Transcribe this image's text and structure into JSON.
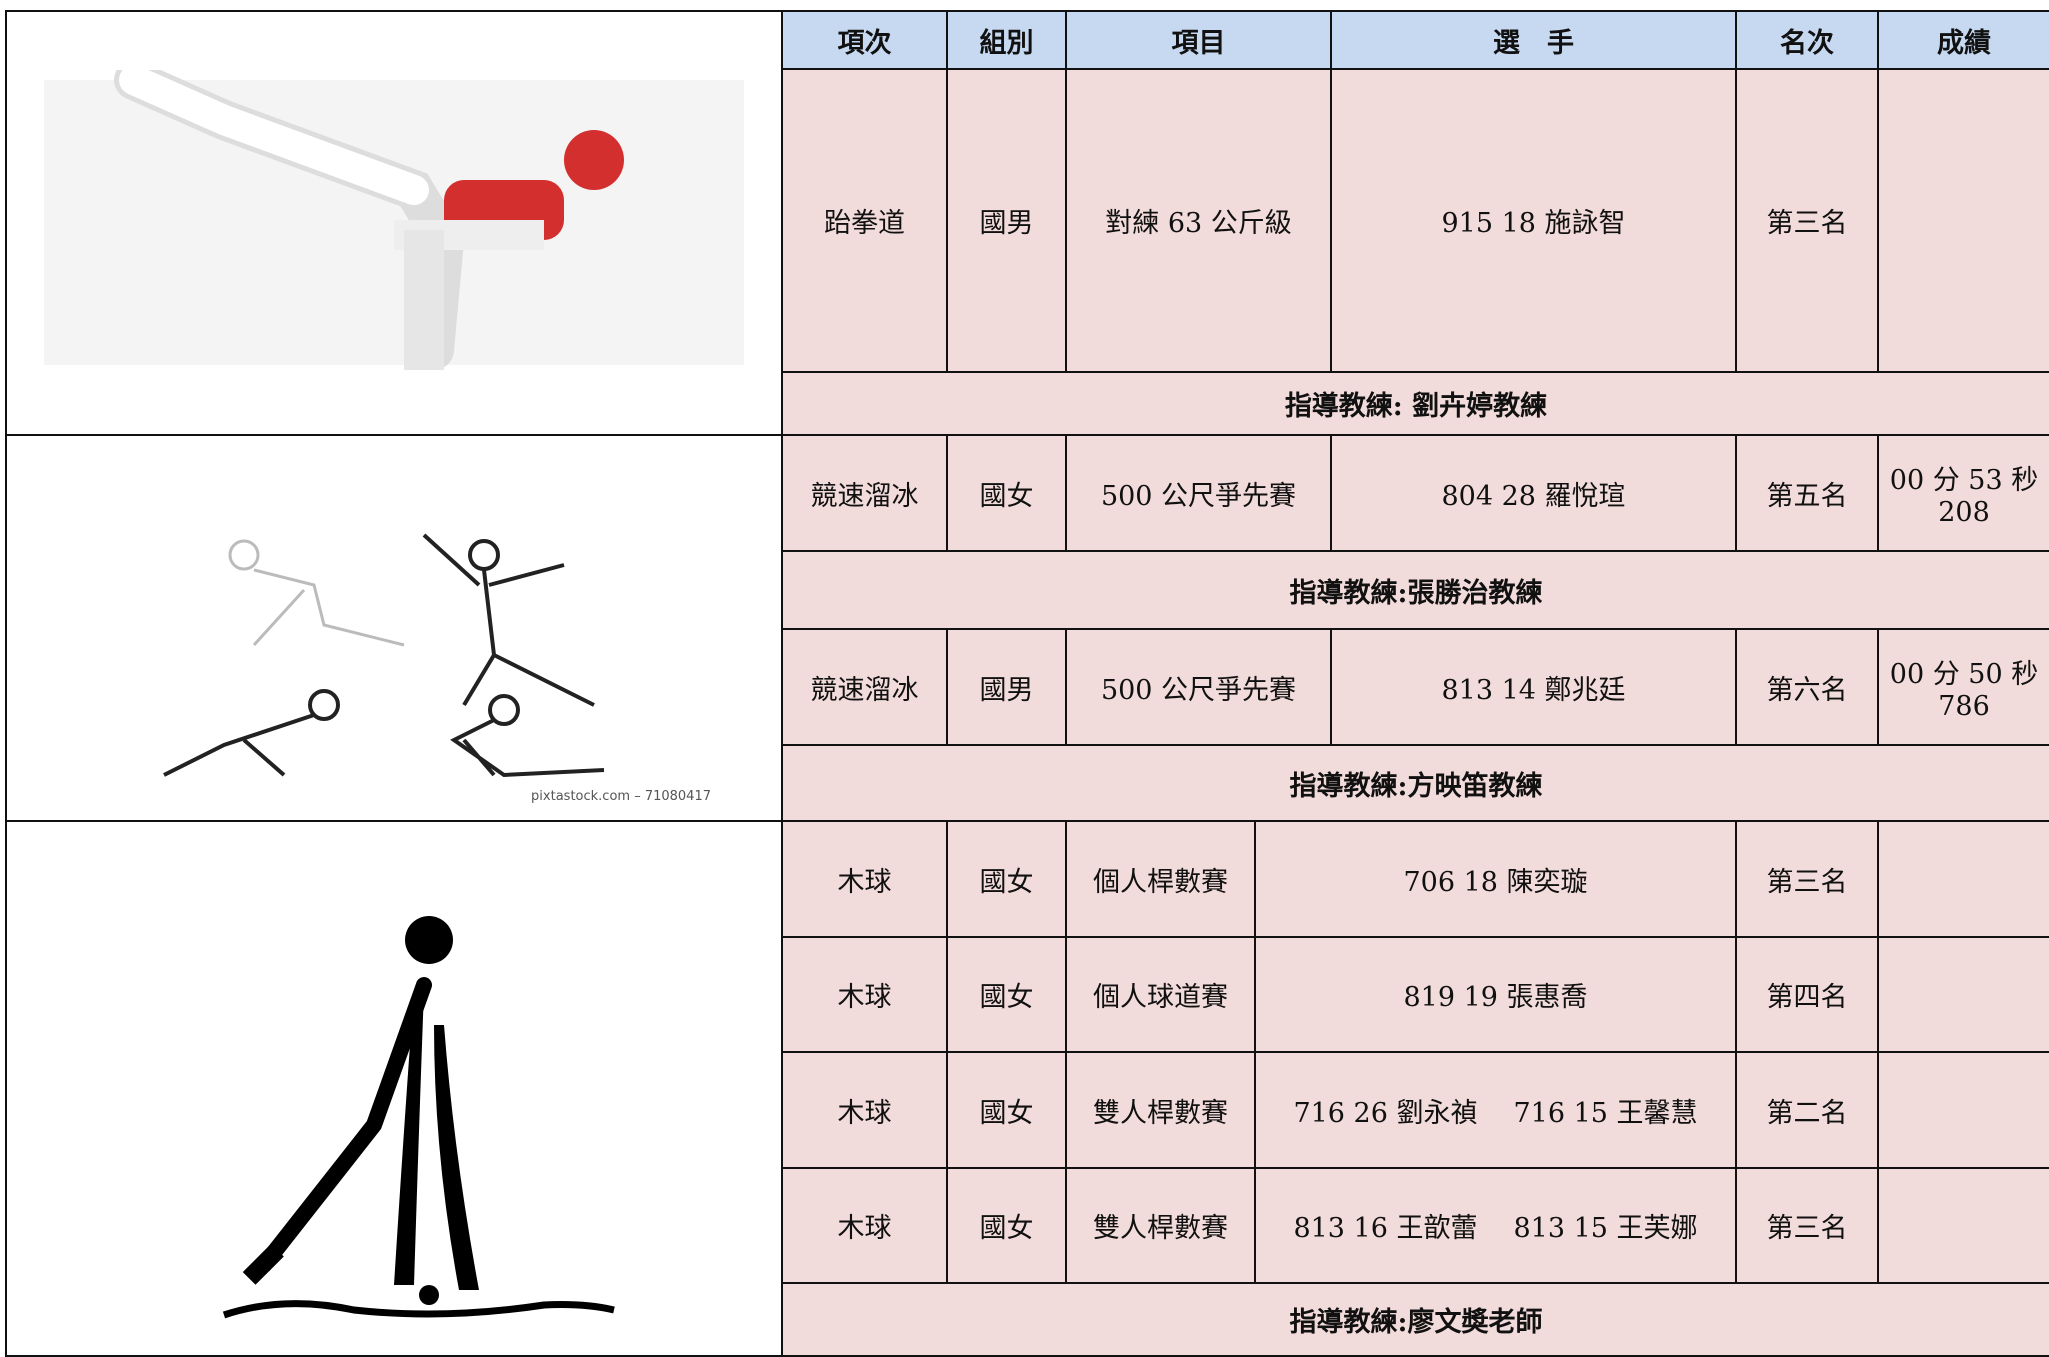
{
  "table": {
    "header": [
      "項次",
      "組別",
      "項目",
      "選　手",
      "名次",
      "成績"
    ],
    "sections": [
      {
        "rows": [
          {
            "event": "跆拳道",
            "group": "國男",
            "item": "對練 63 公斤級",
            "players": [
              "915 18 施詠智"
            ],
            "rank": "第三名"
          }
        ],
        "coach": "指導教練: 劉卉婷教練"
      },
      {
        "rows": [
          {
            "event": "競速溜冰",
            "group": "國女",
            "item": "500 公尺爭先賽",
            "players": [
              "804 28 羅悅瑄"
            ],
            "rank": "第五名",
            "result": "00 分 53 秒 208"
          }
        ],
        "coach": "指導教練:張勝治教練"
      },
      {
        "rows": [
          {
            "event": "競速溜冰",
            "group": "國男",
            "item": "500 公尺爭先賽",
            "players": [
              "813 14 鄭兆廷"
            ],
            "rank": "第六名",
            "result": "00 分 50 秒 786"
          }
        ],
        "coach": "指導教練:方映笛教練"
      },
      {
        "rows": [
          {
            "event": "木球",
            "group": "國女",
            "item": "個人桿數賽",
            "players": [
              "706 18 陳奕璇"
            ],
            "rank": "第三名"
          },
          {
            "event": "木球",
            "group": "國女",
            "item": "個人球道賽",
            "players": [
              "819 19 張惠喬"
            ],
            "rank": "第四名"
          },
          {
            "event": "木球",
            "group": "國女",
            "item": "雙人桿數賽",
            "players": [
              "716 26 劉永禎",
              "716 15 王馨慧"
            ],
            "rank": "第二名"
          },
          {
            "event": "木球",
            "group": "國女",
            "item": "雙人桿數賽",
            "players": [
              "813 16 王歆蕾",
              "813 15 王芙娜"
            ],
            "rank": "第三名"
          }
        ],
        "coach": "指導教練:廖文奬老師"
      }
    ]
  },
  "watermark": "pixtastock.com – 71080417"
}
